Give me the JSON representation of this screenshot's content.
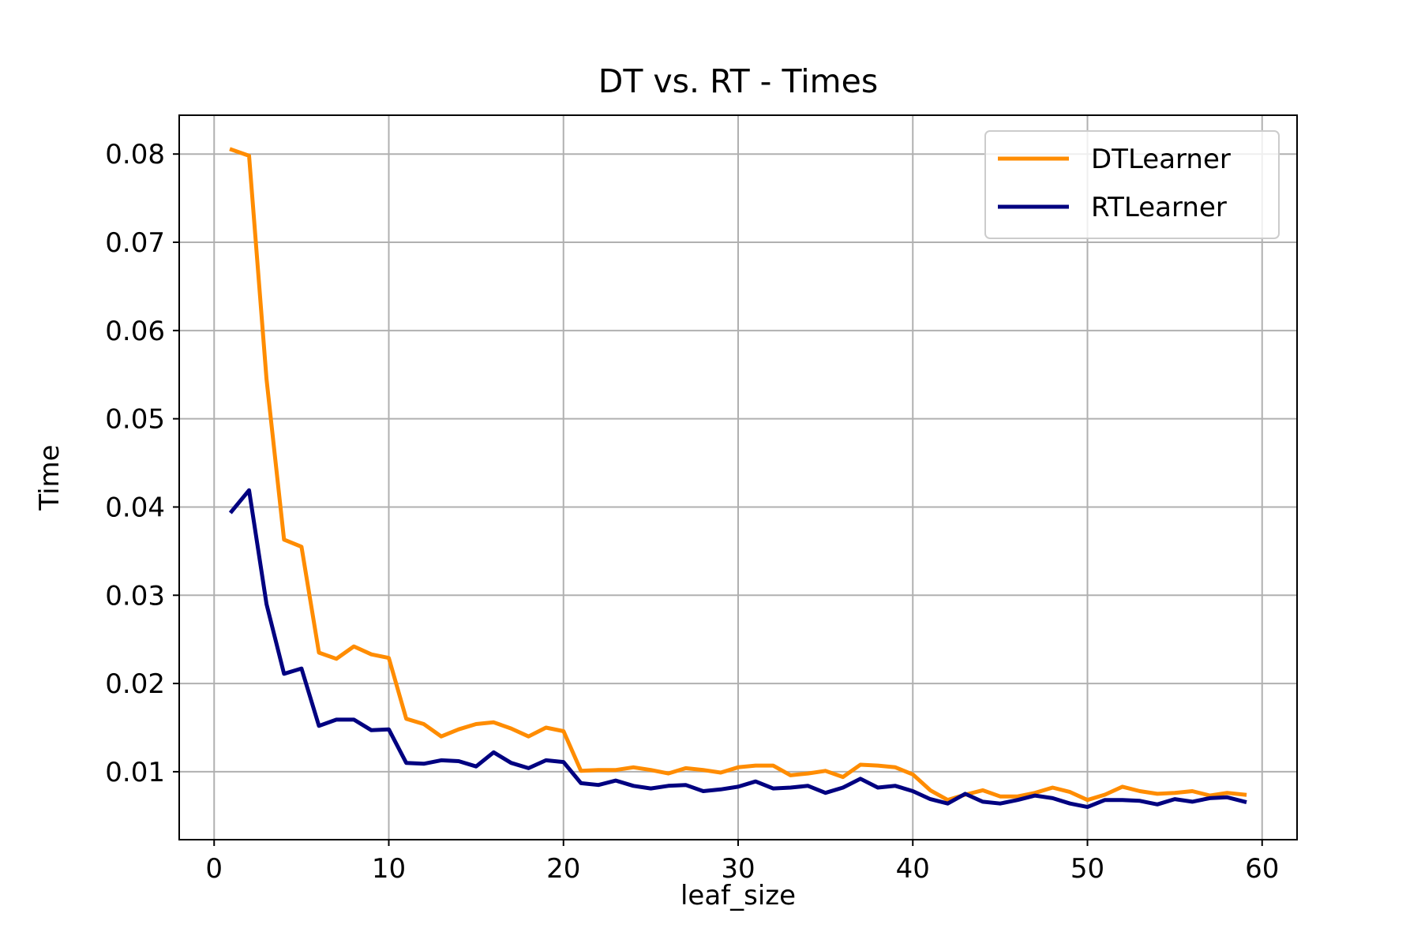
{
  "chart_data": {
    "type": "line",
    "title": "DT vs. RT - Times",
    "xlabel": "leaf_size",
    "ylabel": "Time",
    "xlim": [
      -2,
      62
    ],
    "ylim": [
      0.0023,
      0.0844
    ],
    "xticks": [
      0,
      10,
      20,
      30,
      40,
      50,
      60
    ],
    "xtick_labels": [
      "0",
      "10",
      "20",
      "30",
      "40",
      "50",
      "60"
    ],
    "yticks": [
      0.01,
      0.02,
      0.03,
      0.04,
      0.05,
      0.06,
      0.07,
      0.08
    ],
    "ytick_labels": [
      "0.01",
      "0.02",
      "0.03",
      "0.04",
      "0.05",
      "0.06",
      "0.07",
      "0.08"
    ],
    "grid": true,
    "legend_position": "top-right",
    "x": [
      1,
      2,
      3,
      4,
      5,
      6,
      7,
      8,
      9,
      10,
      11,
      12,
      13,
      14,
      15,
      16,
      17,
      18,
      19,
      20,
      21,
      22,
      23,
      24,
      25,
      26,
      27,
      28,
      29,
      30,
      31,
      32,
      33,
      34,
      35,
      36,
      37,
      38,
      39,
      40,
      41,
      42,
      43,
      44,
      45,
      46,
      47,
      48,
      49,
      50,
      51,
      52,
      53,
      54,
      55,
      56,
      57,
      58,
      59
    ],
    "series": [
      {
        "name": "DTLearner",
        "color": "#ff8c00",
        "values": [
          0.0805,
          0.0798,
          0.0545,
          0.0363,
          0.0355,
          0.0235,
          0.0228,
          0.0242,
          0.0233,
          0.0229,
          0.016,
          0.0154,
          0.014,
          0.0148,
          0.0154,
          0.0156,
          0.0149,
          0.014,
          0.015,
          0.0146,
          0.0101,
          0.0102,
          0.0102,
          0.0105,
          0.0102,
          0.0098,
          0.0104,
          0.0102,
          0.0099,
          0.0105,
          0.0107,
          0.0107,
          0.0096,
          0.0098,
          0.0101,
          0.0094,
          0.0108,
          0.0107,
          0.0105,
          0.0097,
          0.0079,
          0.0068,
          0.0074,
          0.0079,
          0.0072,
          0.0072,
          0.0076,
          0.0082,
          0.0077,
          0.0068,
          0.0074,
          0.0083,
          0.0078,
          0.0075,
          0.0076,
          0.0078,
          0.0073,
          0.0076,
          0.0074
        ]
      },
      {
        "name": "RTLearner",
        "color": "#000080",
        "values": [
          0.0395,
          0.0419,
          0.029,
          0.0211,
          0.0217,
          0.0152,
          0.0159,
          0.0159,
          0.0147,
          0.0148,
          0.011,
          0.0109,
          0.0113,
          0.0112,
          0.0106,
          0.0122,
          0.011,
          0.0104,
          0.0113,
          0.0111,
          0.0087,
          0.0085,
          0.009,
          0.0084,
          0.0081,
          0.0084,
          0.0085,
          0.0078,
          0.008,
          0.0083,
          0.0089,
          0.0081,
          0.0082,
          0.0084,
          0.0076,
          0.0082,
          0.0092,
          0.0082,
          0.0084,
          0.0078,
          0.0069,
          0.0064,
          0.0075,
          0.0066,
          0.0064,
          0.0068,
          0.0073,
          0.007,
          0.0064,
          0.006,
          0.0068,
          0.0068,
          0.0067,
          0.0063,
          0.0069,
          0.0066,
          0.007,
          0.0071,
          0.0066
        ]
      }
    ]
  }
}
